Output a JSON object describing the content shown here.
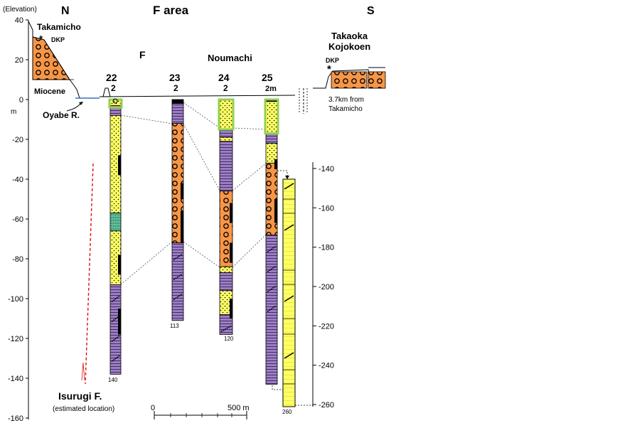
{
  "title": "F area",
  "north": "N",
  "south": "S",
  "elevation_label": "(Elevation)",
  "unit_m": "m",
  "y_axis_ticks": [
    "40",
    "20",
    "0",
    "-20",
    "-40",
    "-60",
    "-80",
    "-100",
    "-120",
    "-140",
    "-160"
  ],
  "places": {
    "takamicho": "Takamicho",
    "dkp_left": "DKP",
    "dkp_right": "DKP",
    "miocene": "Miocene",
    "oyabe": "Oyabe R.",
    "f_label": "F",
    "noumachi": "Noumachi",
    "takaoka_1": "Takaoka",
    "takaoka_2": "Kojokoen",
    "distance_1": "3.7km from",
    "distance_2": "Takamicho",
    "isurugi": "Isurugi F.",
    "isurugi_note": "(estimated location)"
  },
  "boreholes": [
    {
      "number": "22",
      "sub": "2",
      "depth_label": "140"
    },
    {
      "number": "23",
      "sub": "2",
      "depth_label": "113"
    },
    {
      "number": "24",
      "sub": "2",
      "depth_label": "120"
    },
    {
      "number": "25",
      "sub": "2m",
      "depth_label": "260"
    }
  ],
  "extension_ticks": [
    "-140",
    "-160",
    "-180",
    "-200",
    "-220",
    "-240",
    "-260"
  ],
  "scale": {
    "start": "0",
    "end": "500 m"
  },
  "colors": {
    "sand": "#ffff66",
    "gravel": "#f79646",
    "mud": "#9d7ec4",
    "silt": "#5fbf9a",
    "surface": "#92d050",
    "fault": "#e01010",
    "sea": "#9ec9e8"
  }
}
